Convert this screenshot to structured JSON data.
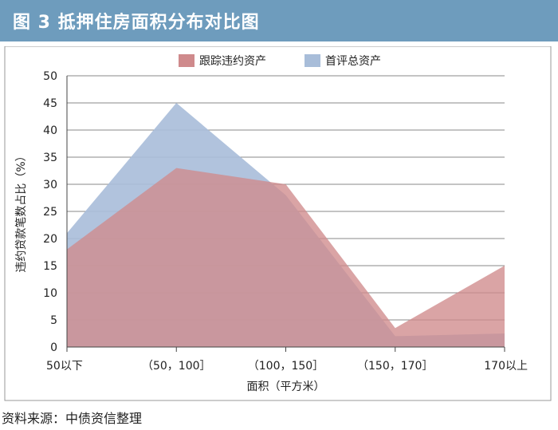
{
  "header": {
    "title": "图 3    抵押住房面积分布对比图"
  },
  "footer": {
    "source": "资料来源：中债资信整理"
  },
  "colors": {
    "header_bg": "#6e9cbd",
    "series_tracked": "#cf8a8c",
    "series_initial": "#a8bdd9",
    "overlap": "#9c8aa3"
  },
  "chart_data": {
    "type": "area",
    "categories": [
      "50以下",
      "（50，100］",
      "（100，150］",
      "（150，170］",
      "170以上"
    ],
    "series": [
      {
        "name": "跟踪违约资产",
        "values": [
          18,
          33,
          30,
          3.5,
          15
        ]
      },
      {
        "name": "首评总资产",
        "values": [
          21,
          45,
          28,
          2,
          2.5
        ]
      }
    ],
    "xlabel": "面积（平方米）",
    "ylabel": "违约贷款笔数占比（%）",
    "ylim": [
      0,
      50
    ],
    "yticks": [
      0,
      5,
      10,
      15,
      20,
      25,
      30,
      35,
      40,
      45,
      50
    ],
    "grid": true,
    "legend_position": "top-center"
  }
}
